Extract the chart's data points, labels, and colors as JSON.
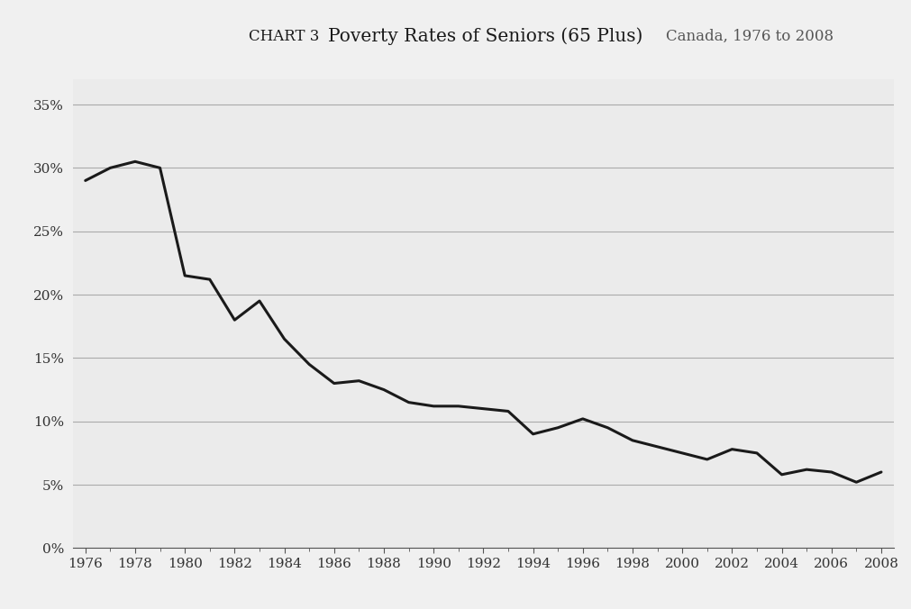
{
  "title_chart": "CHART 3",
  "title_main": "Poverty Rates of Seniors (65 Plus)",
  "title_sub": "Canada, 1976 to 2008",
  "years": [
    1976,
    1977,
    1978,
    1979,
    1980,
    1981,
    1982,
    1983,
    1984,
    1985,
    1986,
    1987,
    1988,
    1989,
    1990,
    1991,
    1992,
    1993,
    1994,
    1995,
    1996,
    1997,
    1998,
    1999,
    2000,
    2001,
    2002,
    2003,
    2004,
    2005,
    2006,
    2007,
    2008
  ],
  "values": [
    29.0,
    30.0,
    30.5,
    30.0,
    21.5,
    21.2,
    18.0,
    19.5,
    16.5,
    14.5,
    13.0,
    13.2,
    12.5,
    11.5,
    11.2,
    11.2,
    11.0,
    10.8,
    9.0,
    9.5,
    10.2,
    9.5,
    8.5,
    8.0,
    7.5,
    7.0,
    7.8,
    7.5,
    5.8,
    6.2,
    6.0,
    5.2,
    6.0
  ],
  "line_color": "#1a1a1a",
  "line_width": 2.2,
  "bg_color": "#f0f0f0",
  "plot_bg_color": "#ebebeb",
  "title_bg_color": "#d8d8d8",
  "ylim": [
    0,
    0.37
  ],
  "yticks": [
    0.0,
    0.05,
    0.1,
    0.15,
    0.2,
    0.25,
    0.3,
    0.35
  ],
  "ytick_labels": [
    "0%",
    "5%",
    "10%",
    "15%",
    "20%",
    "25%",
    "30%",
    "35%"
  ],
  "xticks": [
    1976,
    1978,
    1980,
    1982,
    1984,
    1986,
    1988,
    1990,
    1992,
    1994,
    1996,
    1998,
    2000,
    2002,
    2004,
    2006,
    2008
  ]
}
